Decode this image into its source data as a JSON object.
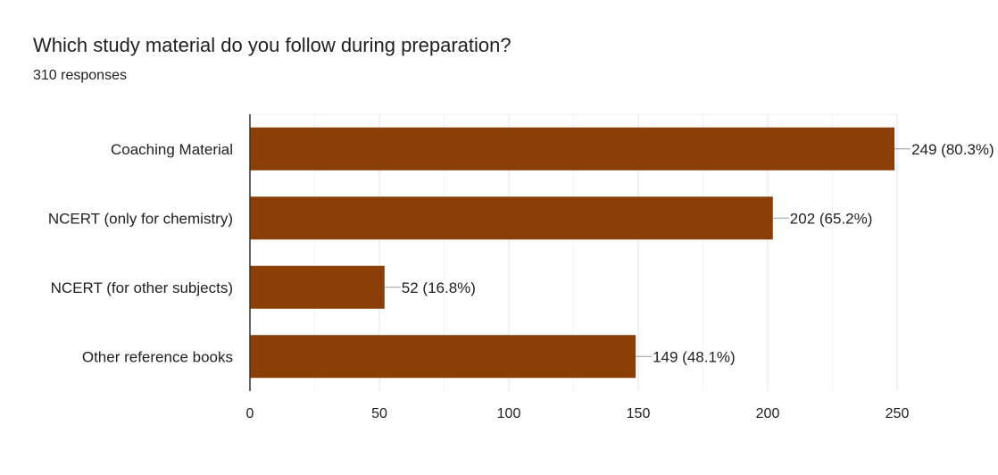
{
  "header": {
    "title": "Which study material do you follow during preparation?",
    "responses": "310 responses"
  },
  "chart_data": {
    "type": "bar",
    "orientation": "horizontal",
    "categories": [
      "Coaching Material",
      "NCERT (only for chemistry)",
      "NCERT (for other subjects)",
      "Other reference books"
    ],
    "values": [
      249,
      202,
      52,
      149
    ],
    "data_labels": [
      "249 (80.3%)",
      "202 (65.2%)",
      "52 (16.8%)",
      "149 (48.1%)"
    ],
    "xlim": [
      0,
      250
    ],
    "xticks": [
      0,
      50,
      100,
      150,
      200,
      250
    ],
    "bar_color": "#8b3e05",
    "grid": true
  }
}
